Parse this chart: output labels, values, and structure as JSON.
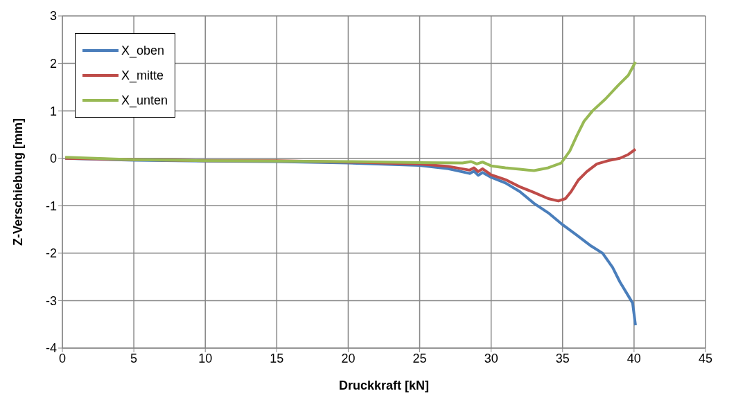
{
  "chart_data": {
    "type": "line",
    "xlabel": "Druckkraft [kN]",
    "ylabel": "Z-Verschiebung [mm]",
    "xlim": [
      0,
      45
    ],
    "xticks": [
      0,
      5,
      10,
      15,
      20,
      25,
      30,
      35,
      40,
      45
    ],
    "ylim": [
      -4,
      3
    ],
    "yticks": [
      -4,
      -3,
      -2,
      -1,
      0,
      1,
      2,
      3
    ],
    "grid": true,
    "legend": "top left",
    "marker": "none",
    "line_style": "solid",
    "series": [
      {
        "name": "X_oben",
        "color": "#4a7ebb",
        "x": [
          0.2,
          5,
          10,
          15,
          20,
          25,
          27,
          28.5,
          28.8,
          29.1,
          29.4,
          30,
          31,
          32,
          33,
          34,
          35,
          36,
          37,
          37.8,
          38.5,
          39,
          39.5,
          39.9,
          40.1
        ],
        "values": [
          0,
          -0.04,
          -0.06,
          -0.07,
          -0.1,
          -0.15,
          -0.22,
          -0.32,
          -0.27,
          -0.36,
          -0.3,
          -0.4,
          -0.52,
          -0.7,
          -0.95,
          -1.15,
          -1.4,
          -1.62,
          -1.85,
          -2,
          -2.3,
          -2.6,
          -2.85,
          -3.05,
          -3.52
        ]
      },
      {
        "name": "X_mitte",
        "color": "#be4b48",
        "x": [
          0.2,
          5,
          10,
          15,
          20,
          25,
          27,
          28.5,
          28.8,
          29.1,
          29.4,
          30,
          31,
          32,
          33,
          34,
          34.7,
          35.2,
          35.6,
          36.1,
          36.7,
          37.4,
          38.2,
          39,
          39.6,
          40.1
        ],
        "values": [
          0,
          -0.03,
          -0.05,
          -0.05,
          -0.08,
          -0.12,
          -0.17,
          -0.25,
          -0.2,
          -0.28,
          -0.22,
          -0.35,
          -0.45,
          -0.6,
          -0.72,
          -0.85,
          -0.9,
          -0.85,
          -0.7,
          -0.46,
          -0.28,
          -0.12,
          -0.05,
          0,
          0.08,
          0.19
        ]
      },
      {
        "name": "X_unten",
        "color": "#98b954",
        "x": [
          0.2,
          5,
          10,
          15,
          20,
          25,
          28,
          28.6,
          29,
          29.4,
          30,
          31,
          32,
          33,
          34,
          34.9,
          35.5,
          36,
          36.5,
          37.1,
          38,
          38.9,
          39.6,
          40.1
        ],
        "values": [
          0.02,
          -0.03,
          -0.05,
          -0.06,
          -0.07,
          -0.09,
          -0.1,
          -0.07,
          -0.12,
          -0.08,
          -0.16,
          -0.2,
          -0.23,
          -0.26,
          -0.2,
          -0.1,
          0.15,
          0.48,
          0.78,
          1.0,
          1.25,
          1.54,
          1.75,
          2.03
        ]
      }
    ]
  }
}
